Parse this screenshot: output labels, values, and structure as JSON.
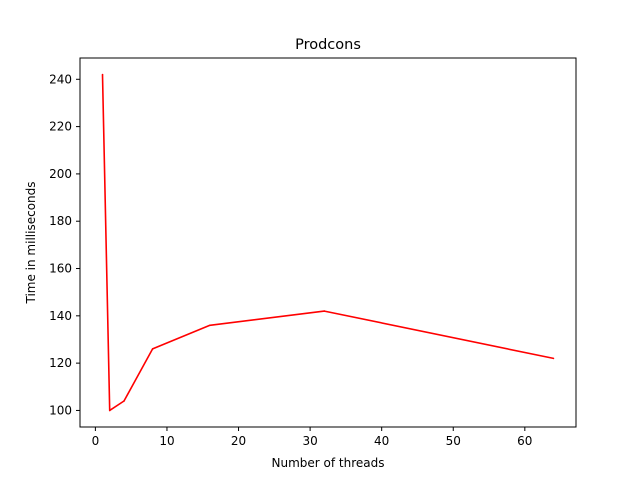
{
  "chart_data": {
    "type": "line",
    "title": "Prodcons",
    "xlabel": "Number of threads",
    "ylabel": "Time in milliseconds",
    "xlim": [
      -2.15,
      67.15
    ],
    "ylim": [
      93.0,
      249.0
    ],
    "xticks": [
      0,
      10,
      20,
      30,
      40,
      50,
      60
    ],
    "yticks": [
      100,
      120,
      140,
      160,
      180,
      200,
      220,
      240
    ],
    "grid": false,
    "series": [
      {
        "color": "#ff0000",
        "x": [
          1,
          2,
          4,
          8,
          16,
          32,
          64
        ],
        "y": [
          242,
          100,
          104,
          126,
          136,
          142,
          122
        ]
      }
    ]
  }
}
